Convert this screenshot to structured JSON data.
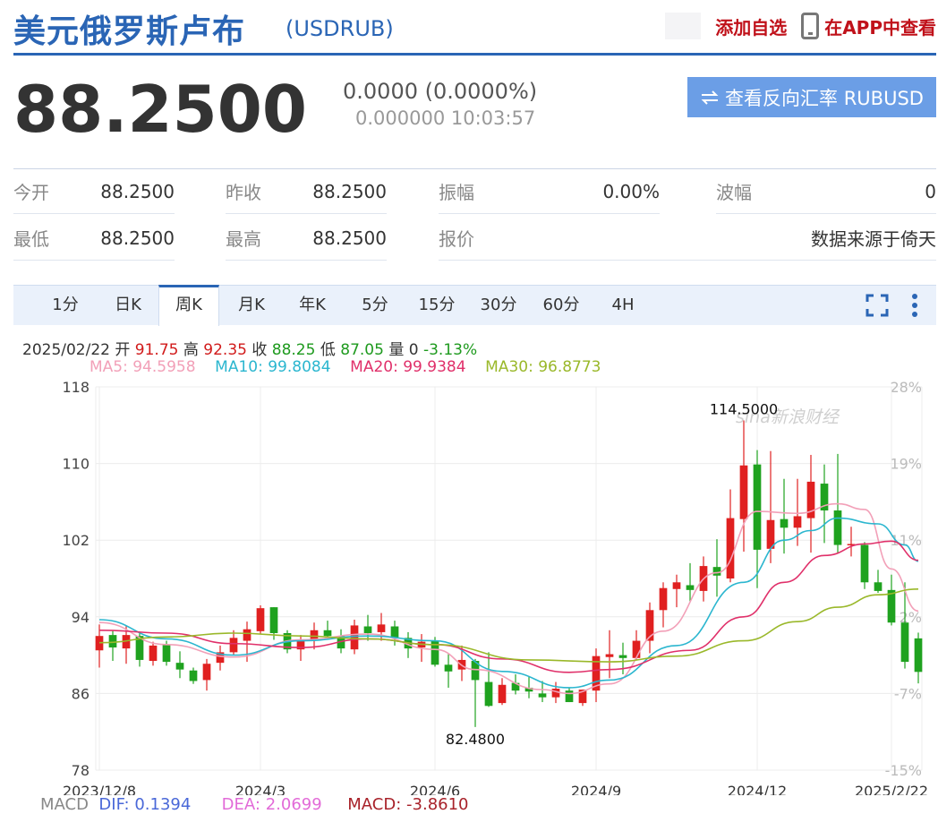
{
  "header": {
    "title": "美元俄罗斯卢布",
    "symbol": "(USDRUB)",
    "add_watch": "添加自选",
    "app_view": "在APP中查看"
  },
  "quote": {
    "price": "88.2500",
    "change": "0.0000 (0.0000%)",
    "time": "0.000000 10:03:57",
    "reverse_btn": "查看反向汇率 RUBUSD"
  },
  "stats": [
    {
      "label": "今开",
      "value": "88.2500"
    },
    {
      "label": "昨收",
      "value": "88.2500"
    },
    {
      "label": "振幅",
      "value": "0.00%"
    },
    {
      "label": "波幅",
      "value": "0"
    },
    {
      "label": "最低",
      "value": "88.2500"
    },
    {
      "label": "最高",
      "value": "88.2500"
    },
    {
      "label": "报价",
      "value": ""
    },
    {
      "label": "",
      "value": "数据来源于倚天"
    }
  ],
  "tabs": [
    "1分",
    "日K",
    "周K",
    "月K",
    "年K",
    "5分",
    "15分",
    "30分",
    "60分",
    "4H"
  ],
  "active_tab": "周K",
  "ohlc": {
    "date": "2025/02/22",
    "open_label": "开",
    "open": "91.75",
    "high_label": "高",
    "high": "92.35",
    "close_label": "收",
    "close": "88.25",
    "low_label": "低",
    "low": "87.05",
    "vol_label": "量",
    "vol": "0",
    "pct": "-3.13%"
  },
  "ma": {
    "ma5": "MA5: 94.5958",
    "ma10": "MA10: 99.8084",
    "ma20": "MA20: 99.9384",
    "ma30": "MA30: 96.8773"
  },
  "macd": {
    "label": "MACD",
    "dif": "DIF: 0.1394",
    "dea": "DEA: 2.0699",
    "macd": "MACD: -3.8610"
  },
  "colors": {
    "up": "#e02020",
    "down": "#1fa21f",
    "ma5": "#f2a0b8",
    "ma10": "#2bb6cf",
    "ma20": "#e0306a",
    "ma30": "#9ab82a",
    "accent": "#2a65b5"
  },
  "chart_data": {
    "type": "candlestick",
    "ylim": [
      78,
      118
    ],
    "yticks": [
      "118",
      "110",
      "102",
      "94",
      "86",
      "78"
    ],
    "pct_ticks": [
      "28%",
      "19%",
      "11%",
      "2%",
      "-7%",
      "-15%"
    ],
    "xticks": [
      {
        "i": 0,
        "label": "2023/12/8"
      },
      {
        "i": 12,
        "label": "2024/3"
      },
      {
        "i": 25,
        "label": "2024/6"
      },
      {
        "i": 37,
        "label": "2024/9"
      },
      {
        "i": 49,
        "label": "2024/12"
      },
      {
        "i": 59,
        "label": "2025/2/22"
      }
    ],
    "max_label": "114.5000",
    "min_label": "82.4800",
    "watermark": "sina新浪财经",
    "candles": [
      [
        90.5,
        93.2,
        88.7,
        92.0
      ],
      [
        92.1,
        92.6,
        89.4,
        90.8
      ],
      [
        90.7,
        93.1,
        89.1,
        92.1
      ],
      [
        92.0,
        92.3,
        88.8,
        89.5
      ],
      [
        89.4,
        91.4,
        88.9,
        91.0
      ],
      [
        91.1,
        91.5,
        88.9,
        89.3
      ],
      [
        89.2,
        90.4,
        87.6,
        88.5
      ],
      [
        88.4,
        88.7,
        87.0,
        87.3
      ],
      [
        87.4,
        89.6,
        86.3,
        89.1
      ],
      [
        89.2,
        91.0,
        88.4,
        90.3
      ],
      [
        90.3,
        92.6,
        90.0,
        91.8
      ],
      [
        91.5,
        93.5,
        89.3,
        92.7
      ],
      [
        92.5,
        95.2,
        92.2,
        94.9
      ],
      [
        95.0,
        95.0,
        91.6,
        92.3
      ],
      [
        92.3,
        92.6,
        90.2,
        90.6
      ],
      [
        90.6,
        92.1,
        89.4,
        91.5
      ],
      [
        91.6,
        93.4,
        90.6,
        92.6
      ],
      [
        92.6,
        93.6,
        91.7,
        92.0
      ],
      [
        92.0,
        92.7,
        90.2,
        90.7
      ],
      [
        90.6,
        93.7,
        90.1,
        93.1
      ],
      [
        93.0,
        94.2,
        91.5,
        92.3
      ],
      [
        92.4,
        94.4,
        91.5,
        93.2
      ],
      [
        93.0,
        93.6,
        91.0,
        91.8
      ],
      [
        91.8,
        92.4,
        89.7,
        90.7
      ],
      [
        90.8,
        92.2,
        89.3,
        91.4
      ],
      [
        91.5,
        91.9,
        88.8,
        89.0
      ],
      [
        89.0,
        90.1,
        86.6,
        88.3
      ],
      [
        88.5,
        91.0,
        87.3,
        89.5
      ],
      [
        89.4,
        89.6,
        82.5,
        87.4
      ],
      [
        87.2,
        90.3,
        84.6,
        84.7
      ],
      [
        85.0,
        87.6,
        84.8,
        86.9
      ],
      [
        87.1,
        88.0,
        85.9,
        86.3
      ],
      [
        86.6,
        87.8,
        85.5,
        86.2
      ],
      [
        86.0,
        87.3,
        85.1,
        85.6
      ],
      [
        85.6,
        87.2,
        85.0,
        86.5
      ],
      [
        86.3,
        86.6,
        85.1,
        85.1
      ],
      [
        85.0,
        86.4,
        84.7,
        86.4
      ],
      [
        86.3,
        90.7,
        85.1,
        89.9
      ],
      [
        89.8,
        92.6,
        87.6,
        90.1
      ],
      [
        90.0,
        91.3,
        88.0,
        89.7
      ],
      [
        89.7,
        92.6,
        89.5,
        91.5
      ],
      [
        91.5,
        95.5,
        90.2,
        94.7
      ],
      [
        94.7,
        97.6,
        92.9,
        97.0
      ],
      [
        96.9,
        98.4,
        95.0,
        97.6
      ],
      [
        97.3,
        99.6,
        95.6,
        96.8
      ],
      [
        96.7,
        100.3,
        95.6,
        99.3
      ],
      [
        99.2,
        102.1,
        96.1,
        98.3
      ],
      [
        98.0,
        107.3,
        97.6,
        104.3
      ],
      [
        104.2,
        114.5,
        100.8,
        109.8
      ],
      [
        109.9,
        111.4,
        97.0,
        101.0
      ],
      [
        101.1,
        111.3,
        99.6,
        104.1
      ],
      [
        104.2,
        108.4,
        100.6,
        103.3
      ],
      [
        103.3,
        108.4,
        101.4,
        104.5
      ],
      [
        104.3,
        110.9,
        100.7,
        108.1
      ],
      [
        107.9,
        109.9,
        101.7,
        105.1
      ],
      [
        105.1,
        111.0,
        100.6,
        101.5
      ],
      [
        101.5,
        103.4,
        100.3,
        101.6
      ],
      [
        101.5,
        101.8,
        96.9,
        97.6
      ],
      [
        97.6,
        98.9,
        96.5,
        96.7
      ],
      [
        96.8,
        98.4,
        93.1,
        93.4
      ],
      [
        93.4,
        97.6,
        88.6,
        89.3
      ],
      [
        91.75,
        92.35,
        87.05,
        88.25
      ]
    ],
    "series": {
      "ma5": [
        [
          0,
          93.4
        ],
        [
          5,
          91.1
        ],
        [
          10,
          89.8
        ],
        [
          15,
          91.6
        ],
        [
          20,
          92.2
        ],
        [
          25,
          90.6
        ],
        [
          28,
          88.5
        ],
        [
          33,
          86.4
        ],
        [
          35,
          86.0
        ],
        [
          38,
          87.0
        ],
        [
          42,
          92.5
        ],
        [
          46,
          98.6
        ],
        [
          49,
          105.0
        ],
        [
          52,
          104.8
        ],
        [
          55,
          105.8
        ],
        [
          57,
          105.2
        ],
        [
          59,
          99.0
        ],
        [
          61,
          94.6
        ]
      ],
      "ma10": [
        [
          0,
          93.7
        ],
        [
          5,
          91.7
        ],
        [
          10,
          90.0
        ],
        [
          15,
          91.5
        ],
        [
          20,
          92.0
        ],
        [
          25,
          91.5
        ],
        [
          30,
          88.3
        ],
        [
          35,
          86.6
        ],
        [
          38,
          87.4
        ],
        [
          43,
          91.0
        ],
        [
          48,
          97.6
        ],
        [
          51,
          102.0
        ],
        [
          53,
          103.0
        ],
        [
          55,
          104.3
        ],
        [
          58,
          103.7
        ],
        [
          60,
          101.5
        ],
        [
          61,
          99.8
        ]
      ],
      "ma20": [
        [
          0,
          92.6
        ],
        [
          5,
          92.3
        ],
        [
          10,
          91.2
        ],
        [
          15,
          90.8
        ],
        [
          20,
          91.7
        ],
        [
          25,
          91.1
        ],
        [
          30,
          89.6
        ],
        [
          35,
          88.2
        ],
        [
          38,
          88.5
        ],
        [
          44,
          90.5
        ],
        [
          48,
          94.0
        ],
        [
          51,
          97.6
        ],
        [
          54,
          100.4
        ],
        [
          57,
          101.6
        ],
        [
          59,
          101.9
        ],
        [
          61,
          99.9
        ]
      ],
      "ma30": [
        [
          0,
          91.3
        ],
        [
          5,
          91.9
        ],
        [
          10,
          92.3
        ],
        [
          15,
          92.0
        ],
        [
          20,
          91.7
        ],
        [
          25,
          91.1
        ],
        [
          32,
          89.5
        ],
        [
          38,
          89.3
        ],
        [
          43,
          89.9
        ],
        [
          48,
          91.5
        ],
        [
          52,
          93.5
        ],
        [
          55,
          95.0
        ],
        [
          58,
          96.3
        ],
        [
          61,
          96.9
        ]
      ]
    }
  }
}
